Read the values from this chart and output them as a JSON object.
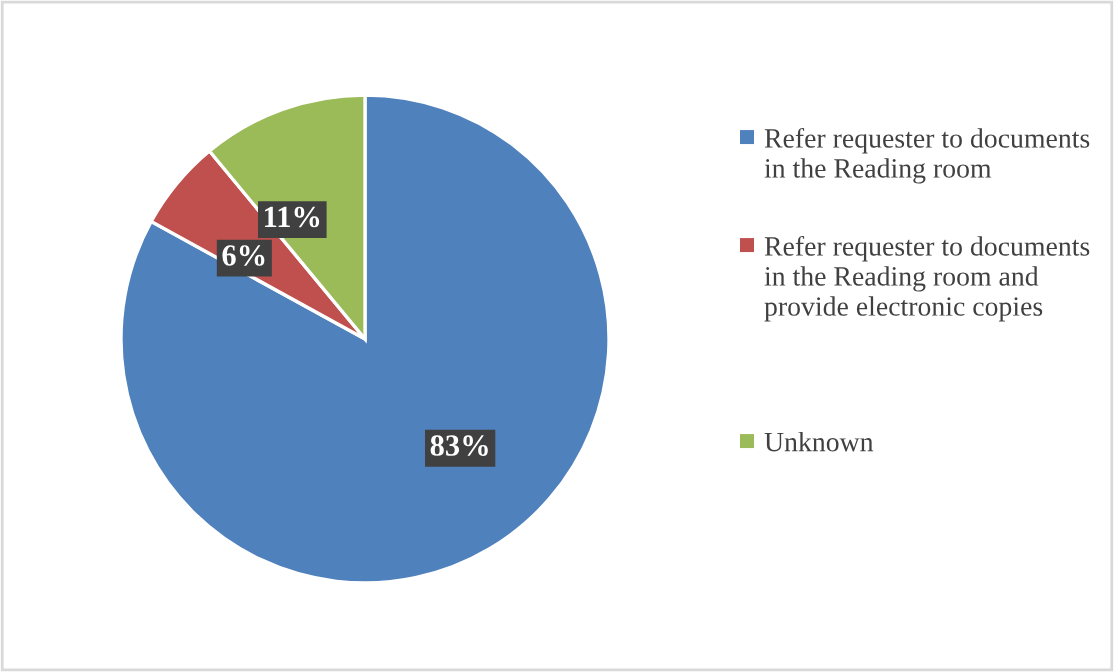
{
  "chart_data": {
    "type": "pie",
    "categories": [
      "Refer requester to documents in the Reading room",
      "Refer requester to documents in the Reading room and provide electronic copies",
      "Unknown"
    ],
    "values": [
      83,
      6,
      11
    ],
    "colors": [
      "#4f81bd",
      "#c0504d",
      "#9bbb59"
    ],
    "value_labels": [
      "83%",
      "6%",
      "11%"
    ],
    "legend": "right"
  }
}
